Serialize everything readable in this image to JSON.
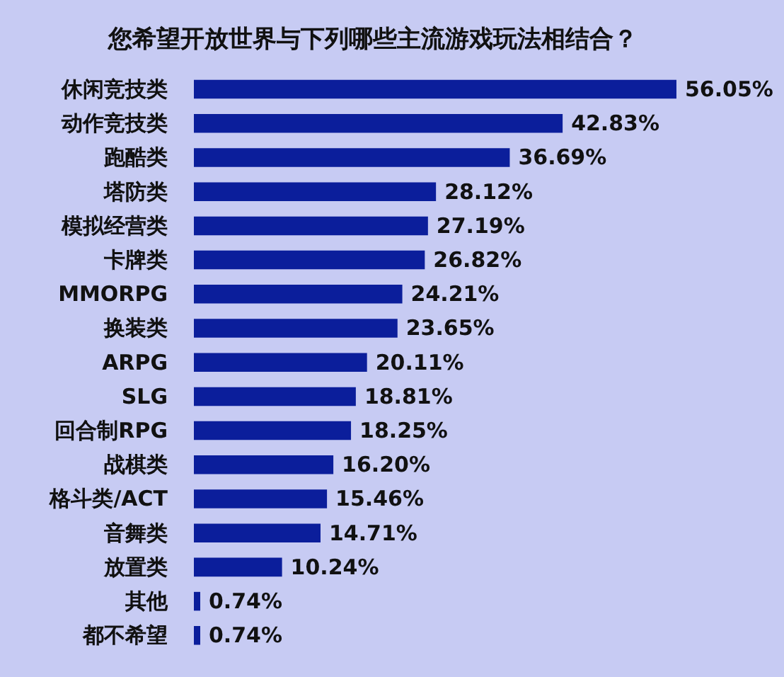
{
  "chart_data": {
    "type": "bar",
    "orientation": "horizontal",
    "title": "您希望开放世界与下列哪些主流游戏玩法相结合？",
    "categories": [
      "休闲竞技类",
      "动作竞技类",
      "跑酷类",
      "塔防类",
      "模拟经营类",
      "卡牌类",
      "MMORPG",
      "换装类",
      "ARPG",
      "SLG",
      "回合制RPG",
      "战棋类",
      "格斗类/ACT",
      "音舞类",
      "放置类",
      "其他",
      "都不希望"
    ],
    "values": [
      56.05,
      42.83,
      36.69,
      28.12,
      27.19,
      26.82,
      24.21,
      23.65,
      20.11,
      18.81,
      18.25,
      16.2,
      15.46,
      14.71,
      10.24,
      0.74,
      0.74
    ],
    "value_labels": [
      "56.05%",
      "42.83%",
      "36.69%",
      "28.12%",
      "27.19%",
      "26.82%",
      "24.21%",
      "23.65%",
      "20.11%",
      "18.81%",
      "18.25%",
      "16.20%",
      "15.46%",
      "14.71%",
      "10.24%",
      "0.74%",
      "0.74%"
    ],
    "color": "#0b1e9b"
  }
}
